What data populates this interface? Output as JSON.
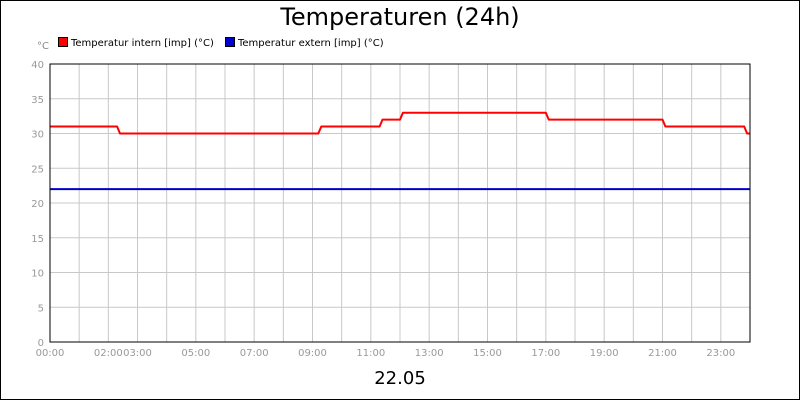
{
  "chart_data": {
    "type": "line",
    "title": "Temperaturen (24h)",
    "date_label": "22.05",
    "unit_label": "°C",
    "ylim": [
      0,
      40
    ],
    "y_ticks": [
      0,
      5,
      10,
      15,
      20,
      25,
      30,
      35,
      40
    ],
    "x_range_hours": [
      0,
      24
    ],
    "x_ticks": [
      {
        "label": "00:00",
        "hour": 0
      },
      {
        "label": "02:00",
        "hour": 2
      },
      {
        "label": "03:00",
        "hour": 3
      },
      {
        "label": "05:00",
        "hour": 5
      },
      {
        "label": "07:00",
        "hour": 7
      },
      {
        "label": "09:00",
        "hour": 9
      },
      {
        "label": "11:00",
        "hour": 11
      },
      {
        "label": "13:00",
        "hour": 13
      },
      {
        "label": "15:00",
        "hour": 15
      },
      {
        "label": "17:00",
        "hour": 17
      },
      {
        "label": "19:00",
        "hour": 19
      },
      {
        "label": "21:00",
        "hour": 21
      },
      {
        "label": "23:00",
        "hour": 23
      }
    ],
    "grid": true,
    "legend_position": "top-left",
    "series": [
      {
        "name": "Temperatur intern [imp] (°C)",
        "color": "#ff0000",
        "points": [
          [
            0.0,
            31
          ],
          [
            2.3,
            31
          ],
          [
            2.4,
            30
          ],
          [
            9.2,
            30
          ],
          [
            9.3,
            31
          ],
          [
            11.3,
            31
          ],
          [
            11.4,
            32
          ],
          [
            12.0,
            32
          ],
          [
            12.1,
            33
          ],
          [
            17.0,
            33
          ],
          [
            17.1,
            32
          ],
          [
            21.0,
            32
          ],
          [
            21.1,
            31
          ],
          [
            23.8,
            31
          ],
          [
            23.9,
            30
          ],
          [
            24.0,
            30
          ]
        ]
      },
      {
        "name": "Temperatur extern [imp] (°C)",
        "color": "#0000cc",
        "points": [
          [
            0.0,
            22
          ],
          [
            24.0,
            22
          ]
        ]
      }
    ]
  }
}
